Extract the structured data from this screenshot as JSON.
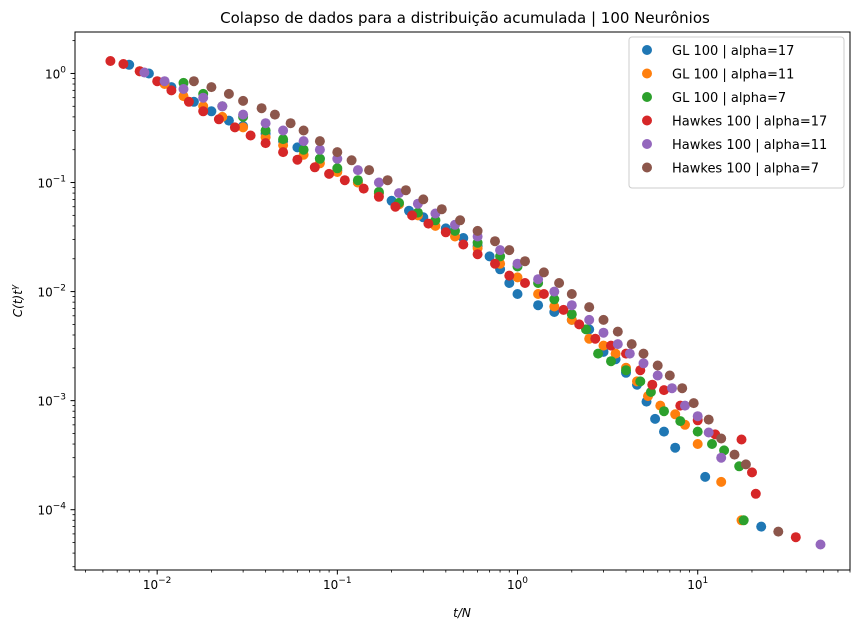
{
  "chart_data": {
    "type": "scatter",
    "title": "Colapso de dados para a distribuição acumulada | 100 Neurônios",
    "xlabel": "t/N",
    "ylabel": "C(t)t^γ",
    "x_scale": "log",
    "y_scale": "log",
    "xlim": [
      0.0035,
      70
    ],
    "ylim": [
      2.8e-05,
      2.4
    ],
    "x_ticks": [
      {
        "value": 0.01,
        "base": "10",
        "exp": "−2"
      },
      {
        "value": 0.1,
        "base": "10",
        "exp": "−1"
      },
      {
        "value": 1,
        "base": "10",
        "exp": "0"
      },
      {
        "value": 10,
        "base": "10",
        "exp": "1"
      }
    ],
    "y_ticks": [
      {
        "value": 0.0001,
        "base": "10",
        "exp": "−4"
      },
      {
        "value": 0.001,
        "base": "10",
        "exp": "−3"
      },
      {
        "value": 0.01,
        "base": "10",
        "exp": "−2"
      },
      {
        "value": 0.1,
        "base": "10",
        "exp": "−1"
      },
      {
        "value": 1,
        "base": "10",
        "exp": "0"
      }
    ],
    "grid": false,
    "legend_position": "top-right",
    "series": [
      {
        "name": "GL 100 | alpha=17",
        "color": "#1f77b4",
        "points": [
          [
            0.007,
            1.2
          ],
          [
            0.009,
            1.0
          ],
          [
            0.012,
            0.75
          ],
          [
            0.016,
            0.55
          ],
          [
            0.02,
            0.45
          ],
          [
            0.025,
            0.37
          ],
          [
            0.03,
            0.33
          ],
          [
            0.04,
            0.28
          ],
          [
            0.05,
            0.24
          ],
          [
            0.06,
            0.21
          ],
          [
            0.08,
            0.165
          ],
          [
            0.1,
            0.13
          ],
          [
            0.13,
            0.1
          ],
          [
            0.17,
            0.08
          ],
          [
            0.2,
            0.068
          ],
          [
            0.25,
            0.055
          ],
          [
            0.3,
            0.048
          ],
          [
            0.4,
            0.038
          ],
          [
            0.5,
            0.031
          ],
          [
            0.6,
            0.026
          ],
          [
            0.7,
            0.021
          ],
          [
            0.8,
            0.016
          ],
          [
            0.9,
            0.012
          ],
          [
            1.0,
            0.0095
          ],
          [
            1.3,
            0.0075
          ],
          [
            1.6,
            0.0065
          ],
          [
            2.0,
            0.0055
          ],
          [
            2.5,
            0.0045
          ],
          [
            3.0,
            0.0028
          ],
          [
            3.5,
            0.0024
          ],
          [
            4.0,
            0.0018
          ],
          [
            4.6,
            0.0014
          ],
          [
            5.2,
            0.00098
          ],
          [
            5.8,
            0.00068
          ],
          [
            6.5,
            0.00052
          ],
          [
            7.5,
            0.00037
          ],
          [
            11,
            0.0002
          ],
          [
            22.5,
            7e-05
          ]
        ]
      },
      {
        "name": "GL 100 | alpha=11",
        "color": "#ff7f0e",
        "points": [
          [
            0.008,
            1.05
          ],
          [
            0.011,
            0.8
          ],
          [
            0.014,
            0.62
          ],
          [
            0.018,
            0.5
          ],
          [
            0.023,
            0.4
          ],
          [
            0.03,
            0.32
          ],
          [
            0.04,
            0.26
          ],
          [
            0.05,
            0.22
          ],
          [
            0.065,
            0.18
          ],
          [
            0.08,
            0.15
          ],
          [
            0.1,
            0.125
          ],
          [
            0.13,
            0.1
          ],
          [
            0.17,
            0.08
          ],
          [
            0.22,
            0.063
          ],
          [
            0.28,
            0.05
          ],
          [
            0.35,
            0.04
          ],
          [
            0.45,
            0.032
          ],
          [
            0.6,
            0.025
          ],
          [
            0.8,
            0.018
          ],
          [
            1.0,
            0.0135
          ],
          [
            1.3,
            0.0095
          ],
          [
            1.6,
            0.0073
          ],
          [
            2.0,
            0.0055
          ],
          [
            2.5,
            0.0037
          ],
          [
            3.0,
            0.0032
          ],
          [
            3.5,
            0.0027
          ],
          [
            4.0,
            0.002
          ],
          [
            4.6,
            0.0015
          ],
          [
            5.3,
            0.0011
          ],
          [
            6.2,
            0.0009
          ],
          [
            7.5,
            0.00075
          ],
          [
            8.5,
            0.0006
          ],
          [
            10.0,
            0.0004
          ],
          [
            13.5,
            0.00018
          ],
          [
            17.5,
            8e-05
          ]
        ]
      },
      {
        "name": "GL 100 | alpha=7",
        "color": "#2ca02c",
        "points": [
          [
            0.014,
            0.82
          ],
          [
            0.018,
            0.65
          ],
          [
            0.023,
            0.5
          ],
          [
            0.03,
            0.4
          ],
          [
            0.04,
            0.3
          ],
          [
            0.05,
            0.25
          ],
          [
            0.065,
            0.2
          ],
          [
            0.08,
            0.165
          ],
          [
            0.1,
            0.135
          ],
          [
            0.13,
            0.105
          ],
          [
            0.17,
            0.082
          ],
          [
            0.22,
            0.065
          ],
          [
            0.28,
            0.053
          ],
          [
            0.35,
            0.045
          ],
          [
            0.45,
            0.036
          ],
          [
            0.6,
            0.028
          ],
          [
            0.8,
            0.021
          ],
          [
            1.0,
            0.017
          ],
          [
            1.3,
            0.012
          ],
          [
            1.6,
            0.0085
          ],
          [
            2.0,
            0.0062
          ],
          [
            2.4,
            0.0045
          ],
          [
            2.8,
            0.0027
          ],
          [
            3.3,
            0.0023
          ],
          [
            4.0,
            0.0019
          ],
          [
            4.8,
            0.0015
          ],
          [
            5.5,
            0.0012
          ],
          [
            6.5,
            0.0008
          ],
          [
            8.0,
            0.00065
          ],
          [
            10.0,
            0.00052
          ],
          [
            12.0,
            0.0004
          ],
          [
            14.0,
            0.00035
          ],
          [
            17.0,
            0.00025
          ],
          [
            18.0,
            8e-05
          ]
        ]
      },
      {
        "name": "Hawkes 100 | alpha=17",
        "color": "#d62728",
        "points": [
          [
            0.0055,
            1.3
          ],
          [
            0.0065,
            1.22
          ],
          [
            0.008,
            1.05
          ],
          [
            0.01,
            0.85
          ],
          [
            0.012,
            0.7
          ],
          [
            0.015,
            0.55
          ],
          [
            0.018,
            0.45
          ],
          [
            0.022,
            0.38
          ],
          [
            0.027,
            0.32
          ],
          [
            0.033,
            0.27
          ],
          [
            0.04,
            0.23
          ],
          [
            0.05,
            0.19
          ],
          [
            0.06,
            0.162
          ],
          [
            0.075,
            0.138
          ],
          [
            0.09,
            0.12
          ],
          [
            0.11,
            0.105
          ],
          [
            0.14,
            0.088
          ],
          [
            0.17,
            0.074
          ],
          [
            0.21,
            0.06
          ],
          [
            0.26,
            0.05
          ],
          [
            0.32,
            0.042
          ],
          [
            0.4,
            0.035
          ],
          [
            0.5,
            0.027
          ],
          [
            0.6,
            0.022
          ],
          [
            0.75,
            0.018
          ],
          [
            0.9,
            0.014
          ],
          [
            1.1,
            0.012
          ],
          [
            1.4,
            0.0095
          ],
          [
            1.8,
            0.0068
          ],
          [
            2.2,
            0.005
          ],
          [
            2.7,
            0.0037
          ],
          [
            3.3,
            0.0032
          ],
          [
            4.0,
            0.0027
          ],
          [
            4.8,
            0.0019
          ],
          [
            5.6,
            0.0014
          ],
          [
            6.5,
            0.00125
          ],
          [
            8.0,
            0.0009
          ],
          [
            10.0,
            0.00066
          ],
          [
            12.5,
            0.00049
          ],
          [
            17.5,
            0.00044
          ],
          [
            20.0,
            0.00022
          ],
          [
            21.0,
            0.00014
          ],
          [
            35.0,
            5.6e-05
          ]
        ]
      },
      {
        "name": "Hawkes 100 | alpha=11",
        "color": "#9467bd",
        "points": [
          [
            0.0085,
            1.02
          ],
          [
            0.011,
            0.85
          ],
          [
            0.014,
            0.72
          ],
          [
            0.018,
            0.6
          ],
          [
            0.023,
            0.5
          ],
          [
            0.03,
            0.42
          ],
          [
            0.04,
            0.35
          ],
          [
            0.05,
            0.3
          ],
          [
            0.065,
            0.24
          ],
          [
            0.08,
            0.2
          ],
          [
            0.1,
            0.165
          ],
          [
            0.13,
            0.13
          ],
          [
            0.17,
            0.1
          ],
          [
            0.22,
            0.08
          ],
          [
            0.28,
            0.064
          ],
          [
            0.35,
            0.052
          ],
          [
            0.45,
            0.041
          ],
          [
            0.6,
            0.032
          ],
          [
            0.8,
            0.024
          ],
          [
            1.0,
            0.018
          ],
          [
            1.3,
            0.013
          ],
          [
            1.6,
            0.01
          ],
          [
            2.0,
            0.0075
          ],
          [
            2.5,
            0.0055
          ],
          [
            3.0,
            0.0042
          ],
          [
            3.6,
            0.0033
          ],
          [
            4.2,
            0.0027
          ],
          [
            5.0,
            0.0022
          ],
          [
            6.0,
            0.0017
          ],
          [
            7.2,
            0.0013
          ],
          [
            8.5,
            0.0009
          ],
          [
            10.0,
            0.00072
          ],
          [
            11.5,
            0.00051
          ],
          [
            13.5,
            0.0003
          ],
          [
            48.0,
            4.8e-05
          ]
        ]
      },
      {
        "name": "Hawkes 100 | alpha=7",
        "color": "#8c564b",
        "points": [
          [
            0.016,
            0.85
          ],
          [
            0.02,
            0.75
          ],
          [
            0.025,
            0.65
          ],
          [
            0.03,
            0.56
          ],
          [
            0.038,
            0.48
          ],
          [
            0.045,
            0.42
          ],
          [
            0.055,
            0.35
          ],
          [
            0.065,
            0.3
          ],
          [
            0.08,
            0.24
          ],
          [
            0.1,
            0.19
          ],
          [
            0.12,
            0.16
          ],
          [
            0.15,
            0.13
          ],
          [
            0.19,
            0.105
          ],
          [
            0.24,
            0.085
          ],
          [
            0.3,
            0.07
          ],
          [
            0.38,
            0.057
          ],
          [
            0.48,
            0.045
          ],
          [
            0.6,
            0.036
          ],
          [
            0.75,
            0.029
          ],
          [
            0.9,
            0.024
          ],
          [
            1.1,
            0.019
          ],
          [
            1.4,
            0.015
          ],
          [
            1.7,
            0.012
          ],
          [
            2.0,
            0.0095
          ],
          [
            2.5,
            0.0072
          ],
          [
            3.0,
            0.0055
          ],
          [
            3.6,
            0.0043
          ],
          [
            4.3,
            0.0033
          ],
          [
            5.0,
            0.0027
          ],
          [
            6.0,
            0.0021
          ],
          [
            7.0,
            0.0017
          ],
          [
            8.2,
            0.0013
          ],
          [
            9.5,
            0.00095
          ],
          [
            11.5,
            0.00067
          ],
          [
            13.5,
            0.00045
          ],
          [
            16.0,
            0.00032
          ],
          [
            18.5,
            0.00026
          ],
          [
            28.0,
            6.3e-05
          ]
        ]
      }
    ]
  }
}
